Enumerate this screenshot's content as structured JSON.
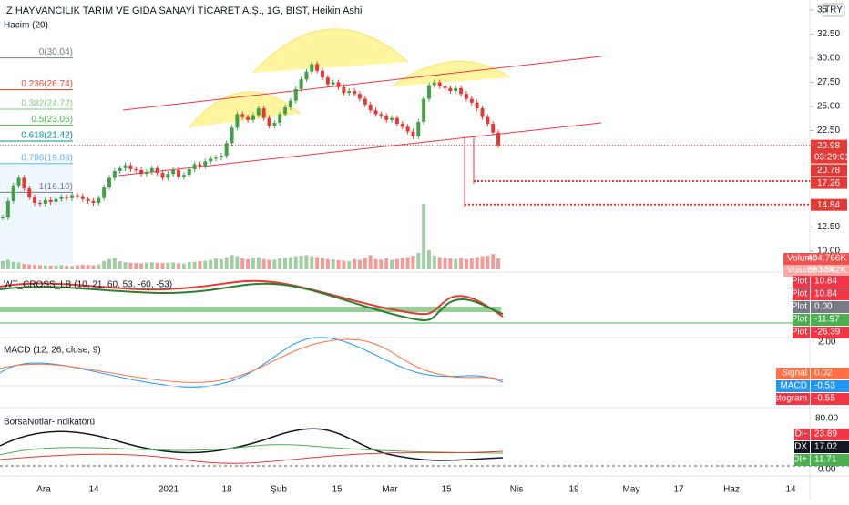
{
  "header": {
    "title": "İZ HAYVANCILIK TARIM VE GIDA SANAYİ TİCARET A.Ş., 1G, BIST, Heikin Ashi",
    "volume_indicator": "Hacim (20)",
    "currency": "TRY"
  },
  "price_axis": {
    "ticks": [
      {
        "value": 35,
        "label": "35"
      },
      {
        "value": 32.5,
        "label": "32.50"
      },
      {
        "value": 30,
        "label": "30.00"
      },
      {
        "value": 27.5,
        "label": "27.50"
      },
      {
        "value": 25,
        "label": "25.00"
      },
      {
        "value": 22.5,
        "label": "22.50"
      },
      {
        "value": 12.5,
        "label": "12.50"
      },
      {
        "value": 10,
        "label": "10.00"
      }
    ]
  },
  "fib_levels": [
    {
      "value": 30.04,
      "label": "0(30.04)",
      "color": "#787b86"
    },
    {
      "value": 26.74,
      "label": "0.236(26.74)",
      "color": "#f44336"
    },
    {
      "value": 24.72,
      "label": "0.382(24.72)",
      "color": "#81c784"
    },
    {
      "value": 23.06,
      "label": "0.5(23.06)",
      "color": "#4caf50"
    },
    {
      "value": 21.42,
      "label": "0.618(21.42)",
      "color": "#009688"
    },
    {
      "value": 19.08,
      "label": "0.786(19.08)",
      "color": "#64b5f6"
    },
    {
      "value": 16.1,
      "label": "1(16.10)",
      "color": "#787b86"
    }
  ],
  "price_markers": [
    {
      "value": 20.98,
      "label": "20.98",
      "countdown": "03:29:01"
    },
    {
      "value": 20.78,
      "label": "20.78"
    },
    {
      "value": 17.26,
      "label": "17.26"
    },
    {
      "value": 14.84,
      "label": "14.84"
    }
  ],
  "candles": {
    "close": [
      13.5,
      15.2,
      16.8,
      17.6,
      16.5,
      15.6,
      15.0,
      14.9,
      15.3,
      15.1,
      15.4,
      15.6,
      15.5,
      15.8,
      15.7,
      15.4,
      15.2,
      15.0,
      15.5,
      16.6,
      17.6,
      18.3,
      18.6,
      18.9,
      18.5,
      18.4,
      18.0,
      18.2,
      18.6,
      18.1,
      17.6,
      18.0,
      18.4,
      17.7,
      17.9,
      18.5,
      19.0,
      18.8,
      19.3,
      19.6,
      19.7,
      19.9,
      21.2,
      22.8,
      24.2,
      23.9,
      23.6,
      24.1,
      24.8,
      23.8,
      23.0,
      23.3,
      24.2,
      24.9,
      25.6,
      26.8,
      27.8,
      28.6,
      29.4,
      28.7,
      28.0,
      27.3,
      27.5,
      27.0,
      26.4,
      26.6,
      26.3,
      25.8,
      25.2,
      24.6,
      24.2,
      24.0,
      23.6,
      23.8,
      23.2,
      22.9,
      22.4,
      21.9,
      23.4,
      25.8,
      27.2,
      27.5,
      27.1,
      26.9,
      26.6,
      26.9,
      26.3,
      25.8,
      25.4,
      24.8,
      23.9,
      23.2,
      22.3,
      20.98
    ],
    "volume": [
      300,
      350,
      280,
      250,
      200,
      180,
      170,
      160,
      150,
      140,
      150,
      160,
      140,
      130,
      150,
      170,
      160,
      150,
      180,
      300,
      380,
      420,
      300,
      260,
      240,
      230,
      220,
      250,
      260,
      240,
      230,
      240,
      250,
      220,
      210,
      260,
      280,
      300,
      320,
      350,
      400,
      380,
      450,
      520,
      480,
      400,
      380,
      420,
      450,
      380,
      350,
      360,
      400,
      420,
      450,
      480,
      500,
      520,
      480,
      450,
      420,
      380,
      360,
      340,
      320,
      300,
      380,
      350,
      420,
      520,
      380,
      360,
      400,
      350,
      380,
      420,
      450,
      500,
      600,
      2400,
      700,
      500,
      450,
      420,
      400,
      380,
      420,
      380,
      400,
      450,
      480,
      500,
      560,
      404.766
    ]
  },
  "volume_labels": [
    {
      "name": "Volume",
      "value": "404.766K"
    },
    {
      "name": "Volume MA",
      "value": "383.542K"
    }
  ],
  "wt_pane": {
    "title": "WT_CROSS_LB (10, 21, 60, 53, -60, -53)",
    "labels": [
      {
        "name": "Plot",
        "value": "10.84",
        "color": "#f23645"
      },
      {
        "name": "Plot",
        "value": "10.84",
        "color": "#f23645"
      },
      {
        "name": "Plot",
        "value": "0.00",
        "color": "#787b86"
      },
      {
        "name": "Plot",
        "value": "-11.97",
        "color": "#4caf50"
      },
      {
        "name": "Plot",
        "value": "-26.39",
        "color": "#f23645"
      }
    ]
  },
  "macd_pane": {
    "title": "MACD (12, 26, close, 9)",
    "axis_label": "2.00",
    "labels": [
      {
        "name": "Signal",
        "value": "0.02",
        "color": "#ff7043"
      },
      {
        "name": "MACD",
        "value": "-0.53",
        "color": "#2196f3"
      },
      {
        "name": "Histogram",
        "value": "-0.55",
        "color": "#f23645"
      }
    ]
  },
  "borsa_pane": {
    "title": "BorsaNotlar-İndikatörü",
    "axis_labels": [
      "80.00",
      "0.00"
    ],
    "labels": [
      {
        "name": "DI-",
        "value": "23.89",
        "color": "#f23645"
      },
      {
        "name": "ADX",
        "value": "17.02",
        "color": "#131722"
      },
      {
        "name": "DI+",
        "value": "11.71",
        "color": "#4caf50"
      }
    ]
  },
  "time_axis": [
    "Ara",
    "14",
    "2021",
    "18",
    "Şub",
    "15",
    "Mar",
    "15",
    "Nis",
    "19",
    "May",
    "17",
    "Haz",
    "14"
  ]
}
